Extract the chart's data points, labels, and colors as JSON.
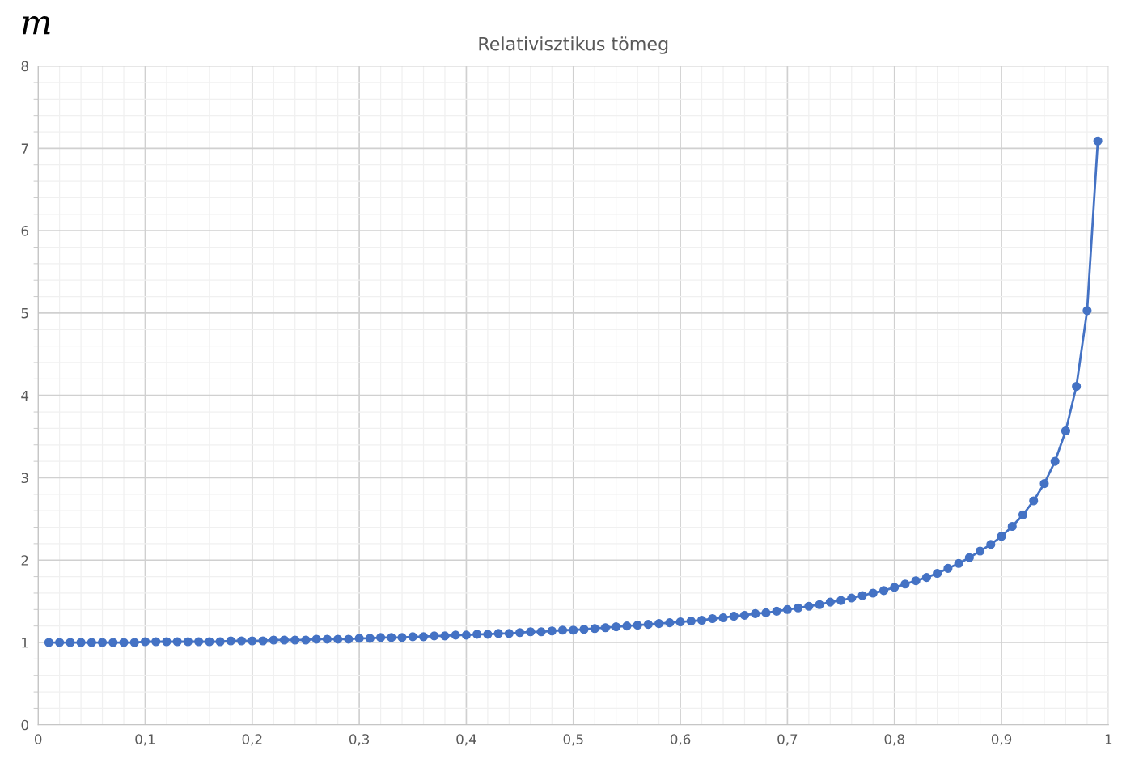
{
  "chart_data": {
    "type": "line",
    "title": "Relativisztikus tömeg",
    "ylabel": "m",
    "x": [
      0.01,
      0.02,
      0.03,
      0.04,
      0.05,
      0.06,
      0.07,
      0.08,
      0.09,
      0.1,
      0.11,
      0.12,
      0.13,
      0.14,
      0.15,
      0.16,
      0.17,
      0.18,
      0.19,
      0.2,
      0.21,
      0.22,
      0.23,
      0.24,
      0.25,
      0.26,
      0.27,
      0.28,
      0.29,
      0.3,
      0.31,
      0.32,
      0.33,
      0.34,
      0.35,
      0.36,
      0.37,
      0.38,
      0.39,
      0.4,
      0.41,
      0.42,
      0.43,
      0.44,
      0.45,
      0.46,
      0.47,
      0.48,
      0.49,
      0.5,
      0.51,
      0.52,
      0.53,
      0.54,
      0.55,
      0.56,
      0.57,
      0.58,
      0.59,
      0.6,
      0.61,
      0.62,
      0.63,
      0.64,
      0.65,
      0.66,
      0.67,
      0.68,
      0.69,
      0.7,
      0.71,
      0.72,
      0.73,
      0.74,
      0.75,
      0.76,
      0.77,
      0.78,
      0.79,
      0.8,
      0.81,
      0.82,
      0.83,
      0.84,
      0.85,
      0.86,
      0.87,
      0.88,
      0.89,
      0.9,
      0.91,
      0.92,
      0.93,
      0.94,
      0.95,
      0.96,
      0.97,
      0.98,
      0.99
    ],
    "series": [
      {
        "color": "#4472c4",
        "values": [
          1.0,
          1.0,
          1.0,
          1.0,
          1.0,
          1.0,
          1.0,
          1.0,
          1.0,
          1.01,
          1.01,
          1.01,
          1.01,
          1.01,
          1.01,
          1.01,
          1.01,
          1.02,
          1.02,
          1.02,
          1.02,
          1.03,
          1.03,
          1.03,
          1.03,
          1.04,
          1.04,
          1.04,
          1.04,
          1.05,
          1.05,
          1.06,
          1.06,
          1.06,
          1.07,
          1.07,
          1.08,
          1.08,
          1.09,
          1.09,
          1.1,
          1.1,
          1.11,
          1.11,
          1.12,
          1.13,
          1.13,
          1.14,
          1.15,
          1.15,
          1.16,
          1.17,
          1.18,
          1.19,
          1.2,
          1.21,
          1.22,
          1.23,
          1.24,
          1.25,
          1.26,
          1.27,
          1.29,
          1.3,
          1.32,
          1.33,
          1.35,
          1.36,
          1.38,
          1.4,
          1.42,
          1.44,
          1.46,
          1.49,
          1.51,
          1.54,
          1.57,
          1.6,
          1.63,
          1.67,
          1.71,
          1.75,
          1.79,
          1.84,
          1.9,
          1.96,
          2.03,
          2.11,
          2.19,
          2.29,
          2.41,
          2.55,
          2.72,
          2.93,
          3.2,
          3.57,
          4.11,
          5.03,
          7.09
        ]
      }
    ],
    "xlim": [
      0,
      1
    ],
    "xticks": [
      0,
      {
        "value": 0.1,
        "label": "0,1"
      },
      {
        "value": 0.2,
        "label": "0,2"
      },
      {
        "value": 0.3,
        "label": "0,3"
      },
      {
        "value": 0.4,
        "label": "0,4"
      },
      {
        "value": 0.5,
        "label": "0,5"
      },
      {
        "value": 0.6,
        "label": "0,6"
      },
      {
        "value": 0.7,
        "label": "0,7"
      },
      {
        "value": 0.8,
        "label": "0,8"
      },
      {
        "value": 0.9,
        "label": "0,9"
      },
      1
    ],
    "ylim": [
      0,
      8
    ],
    "yticks": [
      0,
      1,
      2,
      3,
      4,
      5,
      6,
      7,
      8
    ],
    "grid": true,
    "marker": "circle",
    "line_style": "solid"
  }
}
